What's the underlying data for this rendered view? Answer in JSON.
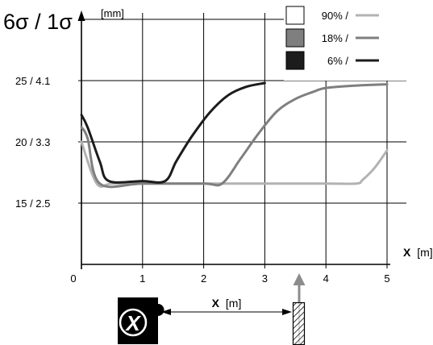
{
  "chart_data": {
    "type": "line",
    "title": "6σ / 1σ",
    "ylabel": "[mm]",
    "xlabel": "X",
    "xlabel_unit": "[m]",
    "xlim": [
      0,
      5
    ],
    "ylim": [
      10,
      30
    ],
    "grid": true,
    "legend_position": "top-right",
    "x_ticks": [
      "0",
      "1",
      "2",
      "3",
      "4",
      "5"
    ],
    "x_tick_values": [
      0,
      1,
      2,
      3,
      4,
      5
    ],
    "y_ticks": [
      {
        "value": 15,
        "label": "15 / 2.5"
      },
      {
        "value": 20,
        "label": "20 / 3.3"
      },
      {
        "value": 25,
        "label": "25 / 4.1"
      }
    ],
    "series": [
      {
        "name": "90% /",
        "color": "#b2b2b2",
        "points": [
          [
            0,
            20.0
          ],
          [
            0.25,
            16.6
          ],
          [
            0.5,
            16.6
          ],
          [
            1,
            16.6
          ],
          [
            2,
            16.6
          ],
          [
            3,
            16.6
          ],
          [
            4,
            16.6
          ],
          [
            4.5,
            16.6
          ],
          [
            4.6,
            16.9
          ],
          [
            4.8,
            17.9
          ],
          [
            5,
            19.3
          ]
        ]
      },
      {
        "name": "18% /",
        "color": "#7f7f7f",
        "points": [
          [
            0,
            21.2
          ],
          [
            0.1,
            20.3
          ],
          [
            0.3,
            16.6
          ],
          [
            1,
            16.6
          ],
          [
            2,
            16.6
          ],
          [
            2.3,
            16.6
          ],
          [
            2.6,
            18.6
          ],
          [
            2.9,
            20.7
          ],
          [
            3.2,
            22.5
          ],
          [
            3.5,
            23.5
          ],
          [
            3.8,
            24.1
          ],
          [
            4.0,
            24.4
          ],
          [
            4.5,
            24.6
          ],
          [
            5.0,
            24.7
          ]
        ]
      },
      {
        "name": "6% /",
        "color": "#1c1c1c",
        "points": [
          [
            0,
            22.2
          ],
          [
            0.1,
            21.2
          ],
          [
            0.3,
            18.4
          ],
          [
            0.45,
            16.8
          ],
          [
            1,
            16.8
          ],
          [
            1.37,
            16.8
          ],
          [
            1.55,
            18.4
          ],
          [
            1.8,
            20.4
          ],
          [
            2.1,
            22.4
          ],
          [
            2.4,
            23.8
          ],
          [
            2.7,
            24.5
          ],
          [
            3.0,
            24.8
          ]
        ]
      }
    ]
  },
  "diagram": {
    "distance_label": "X",
    "distance_unit": "[m]",
    "logo_letter": "X"
  }
}
